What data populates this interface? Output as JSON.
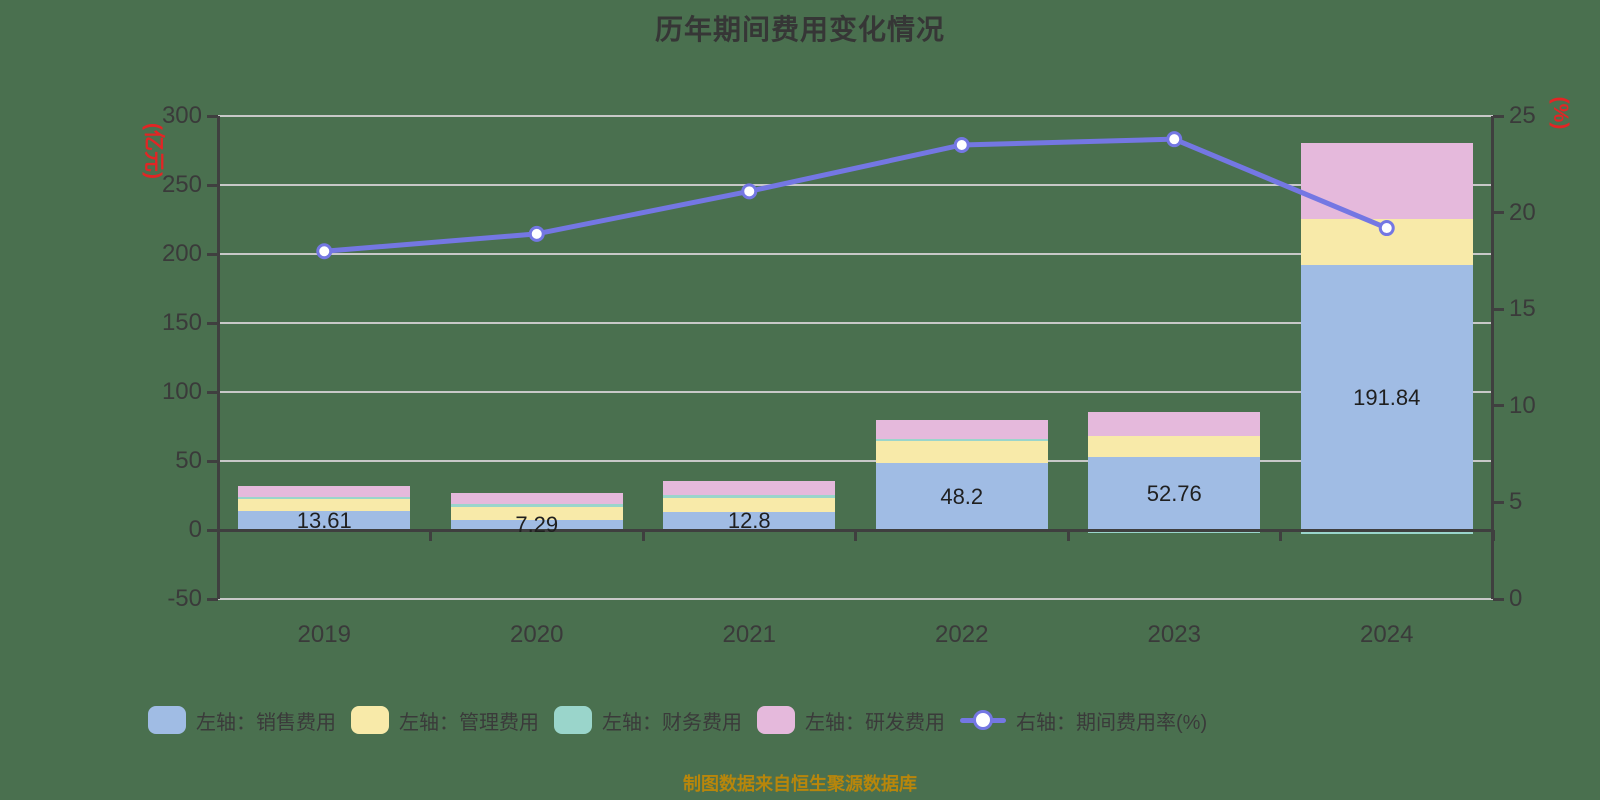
{
  "title": "历年期间费用变化情况",
  "caption": "制图数据来自恒生聚源数据库",
  "axes": {
    "left_unit": "(亿元)",
    "right_unit": "(%)",
    "left_range": [
      -50,
      300
    ],
    "right_range": [
      0,
      25
    ],
    "left_ticks": [
      300,
      250,
      200,
      150,
      100,
      50,
      0,
      -50
    ],
    "right_ticks": [
      25,
      20,
      15,
      10,
      5,
      0
    ]
  },
  "legend": [
    {
      "key": "sales",
      "label": "左轴：销售费用",
      "type": "bar",
      "color": "#a0bce4"
    },
    {
      "key": "mgmt",
      "label": "左轴：管理费用",
      "type": "bar",
      "color": "#f8eaa9"
    },
    {
      "key": "fin",
      "label": "左轴：财务费用",
      "type": "bar",
      "color": "#9ad5cb"
    },
    {
      "key": "rnd",
      "label": "左轴：研发费用",
      "type": "bar",
      "color": "#e5b9dc"
    },
    {
      "key": "rate",
      "label": "右轴：期间费用率(%)",
      "type": "line",
      "color": "#7477e3"
    }
  ],
  "chart_data": {
    "type": "bar",
    "subtype": "stacked-bar-with-line",
    "categories": [
      "2019",
      "2020",
      "2021",
      "2022",
      "2023",
      "2024"
    ],
    "series": [
      {
        "name": "左轴：销售费用",
        "key": "sales",
        "axis": "left",
        "color": "#a0bce4",
        "values": [
          13.61,
          7.29,
          12.8,
          48.2,
          52.76,
          191.84
        ]
      },
      {
        "name": "左轴：管理费用",
        "key": "mgmt",
        "axis": "left",
        "color": "#f8eaa9",
        "values": [
          9.0,
          9.4,
          10.5,
          16.3,
          15.2,
          33.6
        ]
      },
      {
        "name": "左轴：财务费用",
        "key": "fin",
        "axis": "left",
        "color": "#9ad5cb",
        "values": [
          1.5,
          2.5,
          2.2,
          1.2,
          -0.6,
          -1.8
        ]
      },
      {
        "name": "左轴：研发费用",
        "key": "rnd",
        "axis": "left",
        "color": "#e5b9dc",
        "values": [
          8.1,
          7.7,
          10.1,
          13.8,
          17.4,
          55.1
        ]
      },
      {
        "name": "右轴：期间费用率(%)",
        "key": "rate",
        "axis": "right",
        "color": "#7477e3",
        "values": [
          18.0,
          18.9,
          21.1,
          23.5,
          23.8,
          19.2
        ]
      }
    ],
    "bar_value_labels": [
      "13.61",
      "7.29",
      "12.8",
      "48.2",
      "52.76",
      "191.84"
    ],
    "title": "历年期间费用变化情况",
    "xlabel": "",
    "ylabel_left": "(亿元)",
    "ylabel_right": "(%)",
    "ylim_left": [
      -50,
      300
    ],
    "ylim_right": [
      0,
      25
    ],
    "grid": true,
    "legend_position": "bottom"
  },
  "colors": {
    "background": "#4a704f",
    "gridline": "#c8c8c8",
    "axis": "#3f3f3f",
    "tick_text": "#3a3a3a",
    "unit_text": "#e22525",
    "caption_text": "#b8860b",
    "bar_label_text": "#1f1f1f",
    "line": "#7477e3",
    "marker_fill": "#ffffff"
  }
}
